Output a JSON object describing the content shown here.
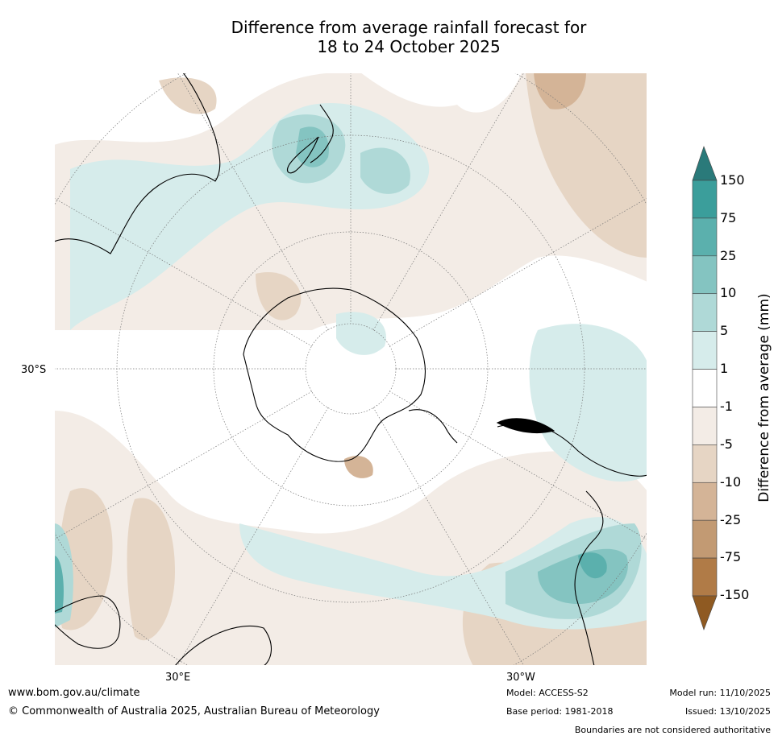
{
  "title": {
    "line1": "Difference from average rainfall forecast for",
    "line2": "18 to 24 October 2025"
  },
  "map": {
    "projection": "south-polar-stereographic",
    "lat_label": "30°S",
    "lon_labels": [
      "30°E",
      "30°W"
    ],
    "colors": {
      "wet_150": "#2a7a7a",
      "wet_75": "#3b9e9b",
      "wet_25": "#5bb0ad",
      "wet_10": "#84c4c1",
      "wet_5": "#afd9d7",
      "wet_1": "#d6eceb",
      "neutral": "#ffffff",
      "dry_1": "#f3ece6",
      "dry_5": "#e6d5c4",
      "dry_10": "#d4b497",
      "dry_25": "#c29a73",
      "dry_75": "#b07b47",
      "dry_150": "#8f5a22"
    }
  },
  "colorbar": {
    "title": "Difference from average (mm)",
    "ticks": [
      "150",
      "75",
      "25",
      "10",
      "5",
      "1",
      "-1",
      "-5",
      "-10",
      "-25",
      "-75",
      "-150"
    ],
    "bins": [
      {
        "color": "#2a7a7a"
      },
      {
        "color": "#3b9e9b"
      },
      {
        "color": "#5bb0ad"
      },
      {
        "color": "#84c4c1"
      },
      {
        "color": "#afd9d7"
      },
      {
        "color": "#d6eceb"
      },
      {
        "color": "#ffffff"
      },
      {
        "color": "#f3ece6"
      },
      {
        "color": "#e6d5c4"
      },
      {
        "color": "#d4b497"
      },
      {
        "color": "#c29a73"
      },
      {
        "color": "#b07b47"
      },
      {
        "color": "#8f5a22"
      }
    ]
  },
  "footer": {
    "website": "www.bom.gov.au/climate",
    "copyright": "© Commonwealth of Australia 2025, Australian Bureau of Meteorology",
    "model": "Model: ACCESS-S2",
    "base_period": "Base period: 1981-2018",
    "model_run": "Model run: 11/10/2025",
    "issued": "Issued: 13/10/2025",
    "disclaimer": "Boundaries are not considered authoritative"
  }
}
